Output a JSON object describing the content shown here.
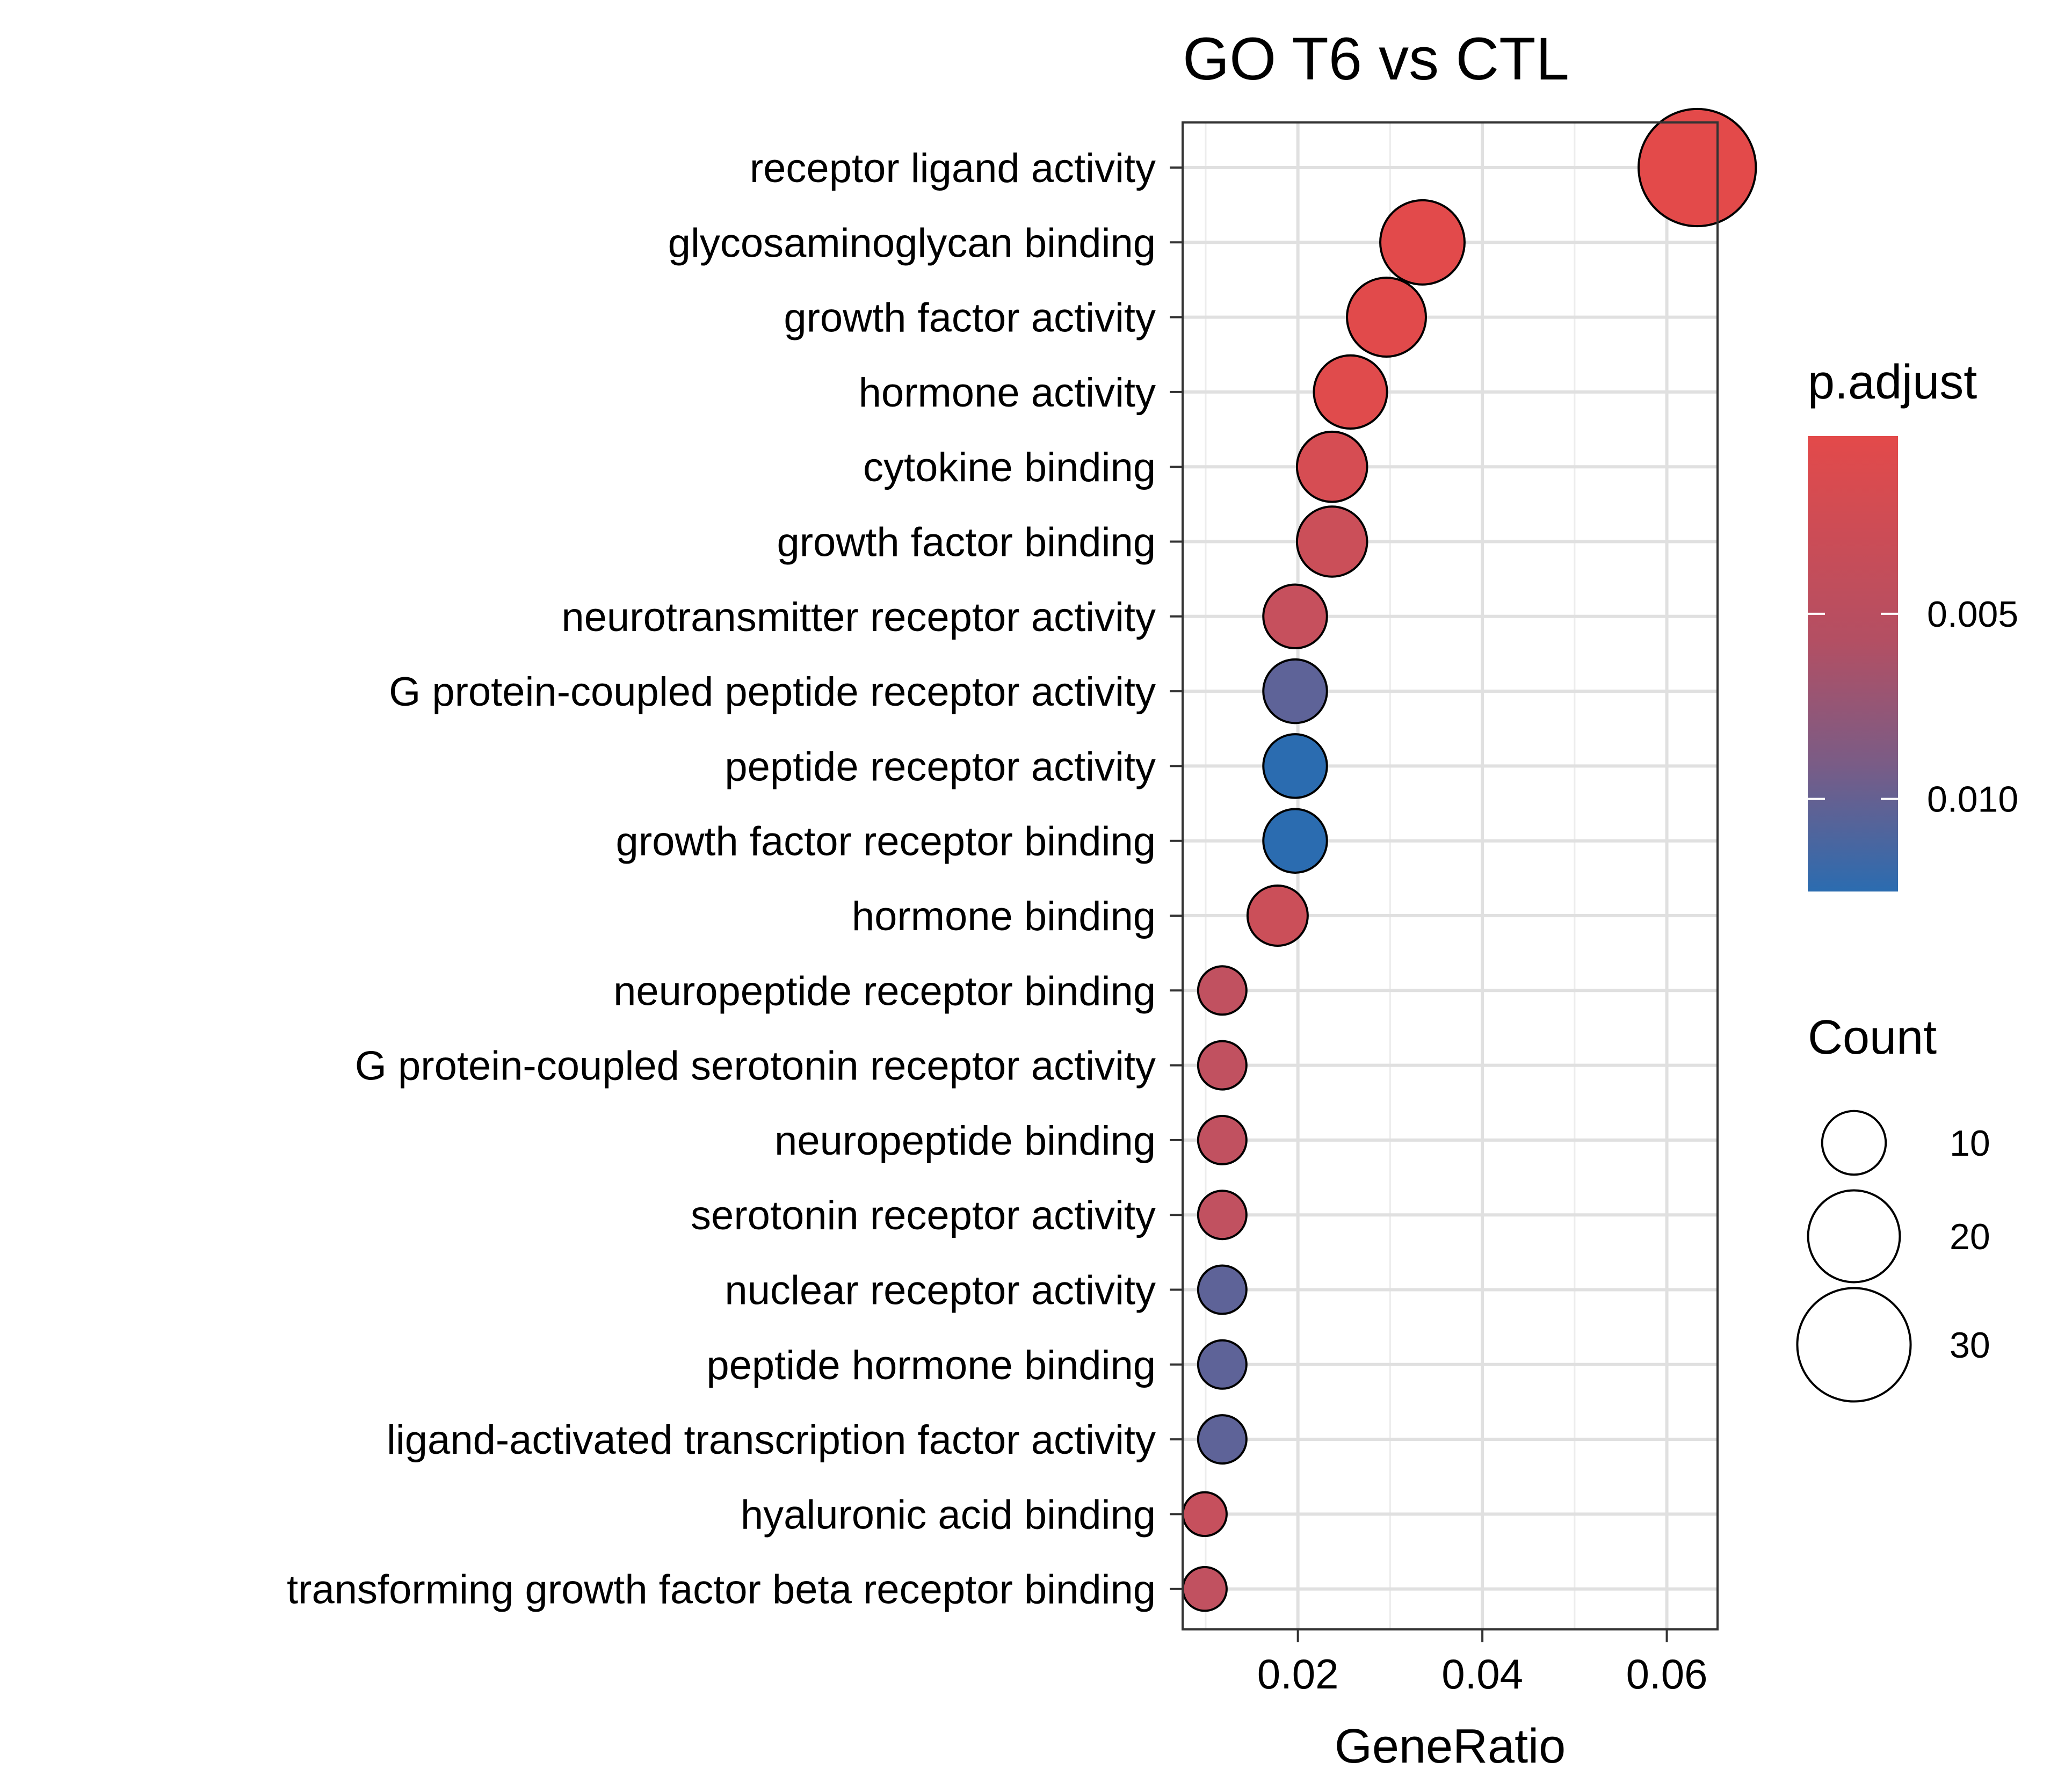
{
  "chart_data": {
    "type": "scatter",
    "title": "GO T6 vs CTL",
    "xlabel": "GeneRatio",
    "ylabel": "",
    "xlim": [
      0.0075,
      0.0655
    ],
    "xticks": [
      {
        "value": 0.02,
        "label": "0.02"
      },
      {
        "value": 0.04,
        "label": "0.04"
      },
      {
        "value": 0.06,
        "label": "0.06"
      }
    ],
    "grid": true,
    "categories": [
      "receptor ligand activity",
      "glycosaminoglycan binding",
      "growth factor activity",
      "hormone activity",
      "cytokine binding",
      "growth factor binding",
      "neurotransmitter receptor activity",
      "G protein-coupled peptide receptor activity",
      "peptide receptor activity",
      "growth factor receptor binding",
      "hormone binding",
      "neuropeptide receptor binding",
      "G protein-coupled serotonin receptor activity",
      "neuropeptide binding",
      "serotonin receptor activity",
      "nuclear receptor activity",
      "peptide hormone binding",
      "ligand-activated transcription factor activity",
      "hyaluronic acid binding",
      "transforming growth factor beta receptor binding"
    ],
    "gene_ratio": [
      0.0633,
      0.0335,
      0.0296,
      0.0257,
      0.0237,
      0.0237,
      0.0197,
      0.0197,
      0.0197,
      0.0197,
      0.0178,
      0.0118,
      0.0118,
      0.0118,
      0.0118,
      0.0118,
      0.0118,
      0.0118,
      0.0099,
      0.0099
    ],
    "count": [
      32,
      17,
      15,
      13,
      12,
      12,
      10,
      10,
      10,
      10,
      9,
      6,
      6,
      6,
      6,
      6,
      6,
      6,
      5,
      5
    ],
    "p_adjust": [
      0.0002,
      0.0003,
      0.0004,
      0.0005,
      0.0015,
      0.0025,
      0.003,
      0.0105,
      0.0125,
      0.0125,
      0.0025,
      0.0035,
      0.0035,
      0.0035,
      0.0035,
      0.0105,
      0.0105,
      0.0105,
      0.003,
      0.0035
    ],
    "legend": {
      "color": {
        "title": "p.adjust",
        "range": [
          0.0002,
          0.0125
        ],
        "ticks": [
          {
            "value": 0.005,
            "label": "0.005"
          },
          {
            "value": 0.01,
            "label": "0.010"
          }
        ],
        "low_color": "#e34a4a",
        "high_color": "#2b6cb0",
        "mid_color": "#8a5c84"
      },
      "size": {
        "title": "Count",
        "range": [
          5,
          32
        ],
        "ticks": [
          {
            "value": 10,
            "label": "10"
          },
          {
            "value": 20,
            "label": "20"
          },
          {
            "value": 30,
            "label": "30"
          }
        ]
      },
      "placement": "right"
    }
  }
}
